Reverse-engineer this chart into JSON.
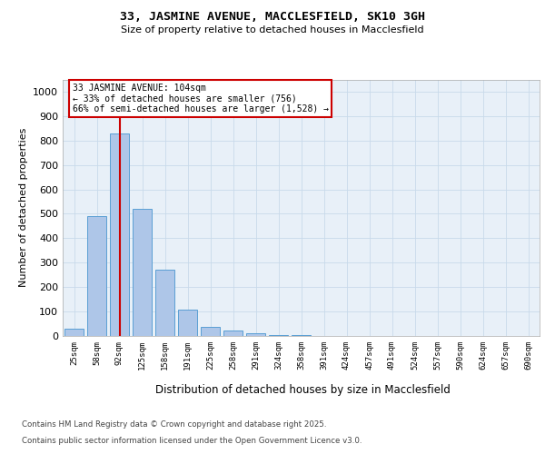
{
  "title1": "33, JASMINE AVENUE, MACCLESFIELD, SK10 3GH",
  "title2": "Size of property relative to detached houses in Macclesfield",
  "xlabel": "Distribution of detached houses by size in Macclesfield",
  "ylabel": "Number of detached properties",
  "categories": [
    "25sqm",
    "58sqm",
    "92sqm",
    "125sqm",
    "158sqm",
    "191sqm",
    "225sqm",
    "258sqm",
    "291sqm",
    "324sqm",
    "358sqm",
    "391sqm",
    "424sqm",
    "457sqm",
    "491sqm",
    "524sqm",
    "557sqm",
    "590sqm",
    "624sqm",
    "657sqm",
    "690sqm"
  ],
  "values": [
    28,
    490,
    830,
    520,
    270,
    108,
    38,
    22,
    10,
    5,
    5,
    0,
    0,
    0,
    0,
    0,
    0,
    0,
    0,
    0,
    0
  ],
  "bar_color": "#aec6e8",
  "bar_edge_color": "#5a9fd4",
  "red_line_index": 2,
  "annotation_line1": "33 JASMINE AVENUE: 104sqm",
  "annotation_line2": "← 33% of detached houses are smaller (756)",
  "annotation_line3": "66% of semi-detached houses are larger (1,528) →",
  "annotation_box_color": "#ffffff",
  "annotation_box_edge": "#cc0000",
  "red_line_color": "#cc0000",
  "ylim": [
    0,
    1050
  ],
  "yticks": [
    0,
    100,
    200,
    300,
    400,
    500,
    600,
    700,
    800,
    900,
    1000
  ],
  "grid_color": "#c8daea",
  "bg_color": "#e8f0f8",
  "footer_line1": "Contains HM Land Registry data © Crown copyright and database right 2025.",
  "footer_line2": "Contains public sector information licensed under the Open Government Licence v3.0."
}
